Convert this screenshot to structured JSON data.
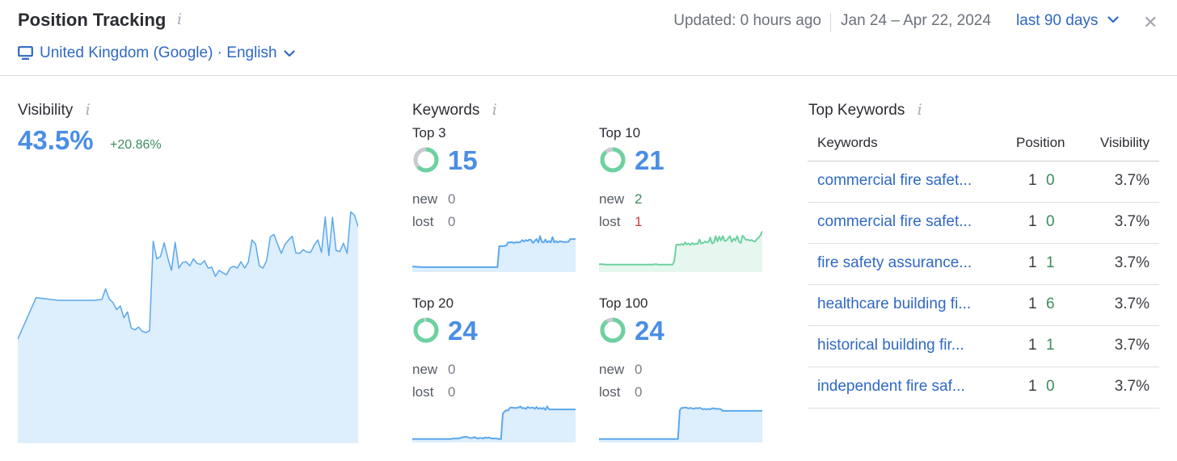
{
  "header": {
    "title": "Position Tracking",
    "info_glyph": "i",
    "updated": "Updated: 0 hours ago",
    "date_range": "Jan 24 – Apr 22, 2024",
    "period": "last 90 days",
    "close_glyph": "✕",
    "location": "United Kingdom (Google) · English"
  },
  "visibility": {
    "title": "Visibility",
    "value": "43.5%",
    "delta": "+20.86%",
    "chart_data": {
      "type": "area",
      "color": "#5aa8ec",
      "fill": "#ddeefd",
      "ylim": [
        0,
        55
      ],
      "values": [
        22.6,
        24.4,
        26.2,
        28.0,
        29.8,
        31.6,
        31.5,
        31.4,
        31.3,
        31.2,
        31.1,
        31.0,
        31.0,
        31.0,
        31.0,
        31.0,
        31.0,
        31.0,
        31.0,
        31.0,
        31.0,
        31.0,
        31.1,
        31.2,
        33.5,
        31.3,
        30.5,
        29.0,
        29.8,
        27.2,
        28.5,
        25.0,
        24.6,
        25.2,
        24.3,
        24.0,
        24.4,
        43.8,
        40.0,
        40.5,
        43.5,
        40.2,
        37.5,
        43.6,
        38.0,
        39.2,
        39.4,
        38.5,
        40.0,
        39.0,
        38.8,
        39.6,
        38.0,
        38.2,
        36.2,
        37.5,
        37.0,
        36.5,
        38.0,
        38.4,
        38.0,
        39.4,
        38.0,
        39.3,
        44.1,
        43.2,
        38.5,
        38.0,
        39.6,
        44.8,
        45.3,
        43.2,
        41.2,
        43.1,
        44.1,
        44.9,
        41.3,
        41.2,
        42.0,
        41.5,
        41.4,
        43.0,
        44.1,
        41.4,
        49.1,
        40.7,
        49.0,
        41.8,
        41.6,
        43.4,
        41.2,
        50.2,
        49.5,
        47.0
      ]
    }
  },
  "keywords": {
    "title": "Keywords",
    "new_label": "new",
    "lost_label": "lost",
    "blocks": [
      {
        "label": "Top 3",
        "count": "15",
        "new": "0",
        "lost": "0",
        "ring_fraction": 0.63,
        "ring_color": "#6dd1a0",
        "spark_color": "#5aa8ec",
        "spark_fill": "#ddeefd",
        "spark": [
          2.2,
          2.2,
          2.2,
          2.1,
          2.1,
          2.0,
          2.0,
          2.0,
          2.0,
          2.0,
          2.0,
          2.0,
          2.0,
          2.0,
          2.0,
          2.0,
          2.0,
          2.0,
          2.0,
          2.0,
          2.0,
          2.0,
          2.0,
          2.0,
          2.0,
          2.0,
          2.0,
          2.0,
          2.0,
          2.0,
          2.0,
          2.0,
          2.0,
          2.0,
          2.0,
          2.0,
          2.0,
          2.0,
          2.0,
          2.0,
          2.0,
          2.0,
          2.0,
          2.0,
          2.0,
          2.0,
          2.0,
          2.0,
          2.0,
          10.5,
          10.5,
          10.5,
          10.6,
          10.8,
          12.0,
          12.0,
          12.2,
          11.8,
          12.0,
          12.1,
          12.0,
          12.2,
          13.0,
          12.4,
          13.0,
          12.6,
          13.2,
          13.0,
          11.8,
          12.6,
          13.4,
          12.0,
          14.6,
          12.2,
          12.0,
          13.2,
          12.0,
          12.6,
          12.0,
          14.2,
          12.0,
          12.6,
          12.0,
          12.5,
          12.4,
          12.2,
          12.2,
          12.2,
          12.3,
          13.4,
          13.4,
          13.4,
          13.4
        ]
      },
      {
        "label": "Top 10",
        "count": "21",
        "new": "2",
        "lost": "1",
        "ring_fraction": 0.88,
        "ring_color": "#6dd1a0",
        "spark_color": "#6dd1a0",
        "spark_fill": "#e6f7ef",
        "spark": [
          3.2,
          3.2,
          3.2,
          3.1,
          3.0,
          3.0,
          3.0,
          3.0,
          3.0,
          3.0,
          3.0,
          3.0,
          3.0,
          3.0,
          3.0,
          3.0,
          3.0,
          3.0,
          3.0,
          3.0,
          3.0,
          3.0,
          3.0,
          3.0,
          3.0,
          3.0,
          3.0,
          3.0,
          3.0,
          3.0,
          3.0,
          3.2,
          3.2,
          3.0,
          3.0,
          3.0,
          3.0,
          3.0,
          3.0,
          3.0,
          3.0,
          3.0,
          4.6,
          11.0,
          11.2,
          11.0,
          11.4,
          11.0,
          12.0,
          11.2,
          11.6,
          11.0,
          11.8,
          11.2,
          11.6,
          11.4,
          13.2,
          11.6,
          11.8,
          12.4,
          12.0,
          12.2,
          14.0,
          11.6,
          12.0,
          14.6,
          12.4,
          14.4,
          12.8,
          14.6,
          12.6,
          12.8,
          13.6,
          14.6,
          12.2,
          13.6,
          12.8,
          14.6,
          12.4,
          11.8,
          14.8,
          14.0,
          13.0,
          13.2,
          12.8,
          13.0,
          12.6,
          12.4,
          13.4,
          14.0,
          15.0,
          16.6
        ]
      },
      {
        "label": "Top 20",
        "count": "24",
        "new": "0",
        "lost": "0",
        "ring_fraction": 0.96,
        "ring_color": "#6dd1a0",
        "spark_color": "#5aa8ec",
        "spark_fill": "#ddeefd",
        "spark": [
          1.4,
          1.4,
          1.4,
          1.4,
          1.4,
          1.4,
          1.4,
          1.4,
          1.4,
          1.4,
          1.4,
          1.4,
          1.4,
          1.4,
          1.4,
          1.4,
          1.4,
          1.4,
          1.4,
          1.4,
          1.4,
          1.4,
          1.4,
          1.6,
          1.6,
          1.6,
          1.6,
          1.8,
          2.0,
          2.2,
          2.3,
          2.2,
          1.9,
          1.8,
          1.8,
          2.2,
          1.8,
          1.6,
          1.8,
          1.8,
          1.6,
          2.0,
          1.8,
          2.0,
          1.8,
          1.6,
          1.6,
          1.6,
          1.5,
          1.4,
          1.4,
          11.6,
          12.6,
          13.0,
          13.0,
          14.0,
          14.2,
          14.0,
          14.0,
          14.0,
          14.2,
          14.6,
          13.8,
          14.0,
          13.6,
          14.4,
          14.0,
          14.0,
          14.2,
          13.6,
          14.4,
          13.6,
          14.0,
          13.6,
          14.0,
          13.2,
          14.6,
          13.4,
          13.4,
          13.4,
          13.4,
          13.4,
          13.4,
          13.4,
          13.4,
          13.4,
          13.4,
          13.4,
          13.4,
          13.4,
          13.4,
          13.4,
          13.4
        ]
      },
      {
        "label": "Top 100",
        "count": "24",
        "new": "0",
        "lost": "0",
        "ring_fraction": 0.9,
        "ring_color": "#6dd1a0",
        "spark_color": "#5aa8ec",
        "spark_fill": "#ddeefd",
        "spark": [
          1.4,
          1.4,
          1.4,
          1.4,
          1.4,
          1.4,
          1.4,
          1.4,
          1.4,
          1.4,
          1.4,
          1.4,
          1.4,
          1.4,
          1.4,
          1.4,
          1.4,
          1.4,
          1.4,
          1.4,
          1.4,
          1.4,
          1.4,
          1.4,
          1.4,
          1.4,
          1.4,
          1.4,
          1.4,
          1.4,
          1.4,
          1.4,
          1.4,
          1.4,
          1.4,
          1.4,
          1.4,
          1.4,
          1.4,
          1.4,
          1.4,
          1.4,
          1.4,
          1.4,
          1.4,
          13.0,
          14.0,
          14.0,
          14.2,
          14.0,
          13.8,
          14.0,
          13.8,
          13.6,
          14.0,
          13.8,
          14.0,
          13.8,
          13.4,
          13.6,
          13.4,
          13.6,
          13.4,
          13.8,
          13.8,
          13.6,
          13.6,
          13.6,
          13.4,
          12.8,
          12.8,
          12.8,
          12.8,
          12.8,
          12.8,
          12.8,
          12.8,
          12.8,
          12.8,
          12.8,
          12.8,
          12.8,
          12.8,
          12.8,
          12.8,
          12.8,
          12.8,
          12.8,
          12.8,
          12.8,
          12.8,
          12.8
        ]
      }
    ]
  },
  "top_keywords": {
    "title": "Top Keywords",
    "columns": [
      "Keywords",
      "Position",
      "Visibility"
    ],
    "rows": [
      {
        "keyword": "commercial fire safet...",
        "position": "1",
        "change": "0",
        "visibility": "3.7%"
      },
      {
        "keyword": "commercial fire safet...",
        "position": "1",
        "change": "0",
        "visibility": "3.7%"
      },
      {
        "keyword": "fire safety assurance...",
        "position": "1",
        "change": "1",
        "visibility": "3.7%"
      },
      {
        "keyword": "healthcare building fi...",
        "position": "1",
        "change": "6",
        "visibility": "3.7%"
      },
      {
        "keyword": "historical building fir...",
        "position": "1",
        "change": "1",
        "visibility": "3.7%"
      },
      {
        "keyword": "independent fire saf...",
        "position": "1",
        "change": "0",
        "visibility": "3.7%"
      }
    ]
  },
  "colors": {
    "accent_blue": "#4a8ee5",
    "link_blue": "#2f68c4",
    "positive_green": "#3c8c5e",
    "negative_red": "#cc3c3c",
    "ring_gray": "#c7cacf"
  }
}
